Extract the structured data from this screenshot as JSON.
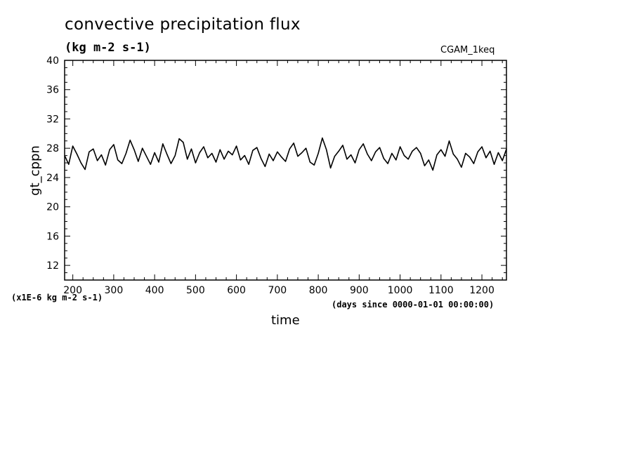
{
  "chart_data": {
    "type": "line",
    "title": "convective precipitation flux",
    "units_label": "(kg m-2 s-1)",
    "run_label": "CGAM_1keq",
    "xlabel": "time",
    "x_units": "(days since 0000-01-01 00:00:00)",
    "ylabel": "gt_cppn",
    "y_scale_label": "(x1E-6 kg m-2 s-1)",
    "xlim": [
      180,
      1260
    ],
    "ylim": [
      10,
      40
    ],
    "x_ticks": [
      200,
      300,
      400,
      500,
      600,
      700,
      800,
      900,
      1000,
      1100,
      1200
    ],
    "y_ticks": [
      12,
      16,
      20,
      24,
      28,
      32,
      36,
      40
    ],
    "grid": false,
    "series": [
      {
        "x": [
          180,
          190,
          200,
          210,
          220,
          230,
          240,
          250,
          260,
          270,
          280,
          290,
          300,
          310,
          320,
          330,
          340,
          350,
          360,
          370,
          380,
          390,
          400,
          410,
          420,
          430,
          440,
          450,
          460,
          470,
          480,
          490,
          500,
          510,
          520,
          530,
          540,
          550,
          560,
          570,
          580,
          590,
          600,
          610,
          620,
          630,
          640,
          650,
          660,
          670,
          680,
          690,
          700,
          710,
          720,
          730,
          740,
          750,
          760,
          770,
          780,
          790,
          800,
          810,
          820,
          830,
          840,
          850,
          860,
          870,
          880,
          890,
          900,
          910,
          920,
          930,
          940,
          950,
          960,
          970,
          980,
          990,
          1000,
          1010,
          1020,
          1030,
          1040,
          1050,
          1060,
          1070,
          1080,
          1090,
          1100,
          1110,
          1120,
          1130,
          1140,
          1150,
          1160,
          1170,
          1180,
          1190,
          1200,
          1210,
          1220,
          1230,
          1240,
          1250,
          1260
        ],
        "values": [
          27.0,
          25.8,
          28.3,
          27.2,
          26.0,
          25.1,
          27.5,
          27.9,
          26.3,
          27.1,
          25.7,
          27.8,
          28.5,
          26.4,
          25.9,
          27.3,
          29.1,
          27.8,
          26.2,
          28.0,
          26.9,
          25.8,
          27.4,
          26.1,
          28.6,
          27.2,
          25.9,
          27.0,
          29.3,
          28.8,
          26.5,
          27.9,
          26.0,
          27.4,
          28.2,
          26.7,
          27.3,
          26.1,
          27.8,
          26.5,
          27.6,
          27.1,
          28.3,
          26.4,
          27.0,
          25.8,
          27.7,
          28.1,
          26.6,
          25.5,
          27.2,
          26.3,
          27.5,
          26.8,
          26.2,
          27.9,
          28.7,
          26.9,
          27.4,
          28.0,
          26.1,
          25.7,
          27.3,
          29.4,
          27.8,
          25.3,
          26.9,
          27.6,
          28.4,
          26.5,
          27.1,
          26.0,
          27.8,
          28.6,
          27.2,
          26.3,
          27.5,
          28.1,
          26.6,
          25.9,
          27.3,
          26.4,
          28.2,
          27.0,
          26.5,
          27.6,
          28.1,
          27.3,
          25.6,
          26.4,
          25.0,
          27.1,
          27.8,
          26.9,
          29.0,
          27.2,
          26.5,
          25.4,
          27.3,
          26.8,
          25.9,
          27.5,
          28.2,
          26.7,
          27.6,
          25.8,
          27.4,
          26.3,
          27.9
        ]
      }
    ]
  }
}
